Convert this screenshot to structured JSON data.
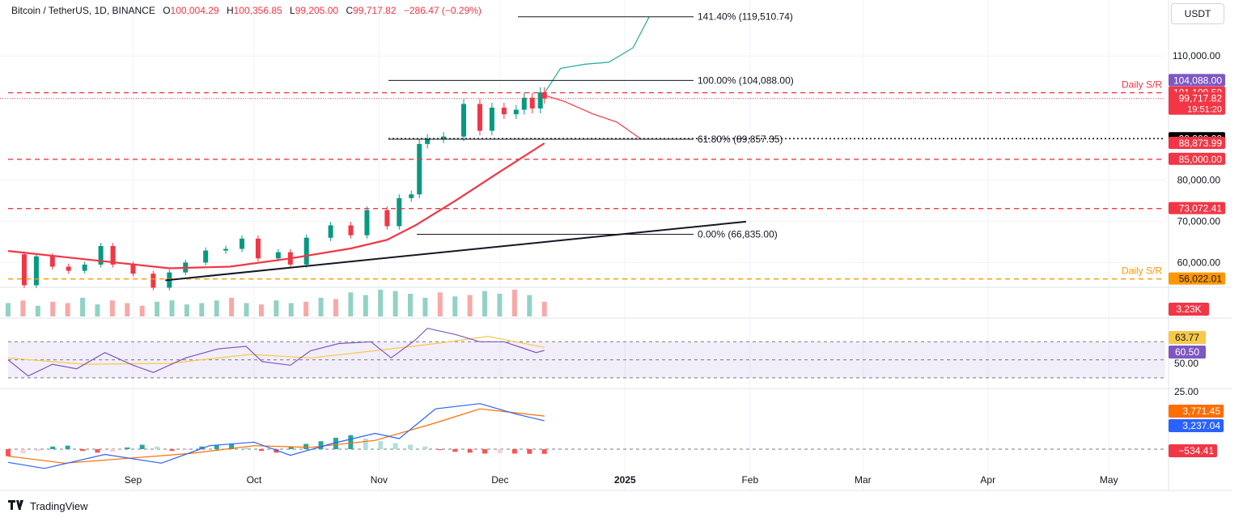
{
  "header": {
    "symbol": "Bitcoin / TetherUS, 1D, BINANCE",
    "o_label": "O",
    "o_value": "100,004.29",
    "h_label": "H",
    "h_value": "100,356.85",
    "l_label": "L",
    "l_value": "99,205.00",
    "c_label": "C",
    "c_value": "99,717.82",
    "change": "−286.47 (−0.29%)"
  },
  "currency": "USDT",
  "brand": "TradingView",
  "colors": {
    "up": "#089981",
    "down": "#f23645",
    "ema": "#f23645",
    "macd": "#2962ff",
    "signal": "#ff6d00",
    "rsi": "#7e57c2",
    "rsi_ma": "#f7c948",
    "support_orange": "#ff9800"
  },
  "chart_data": {
    "type": "candlestick",
    "title": "Bitcoin / TetherUS, 1D, BINANCE",
    "x_range": [
      "2024-08-01",
      "2025-05-15"
    ],
    "y_range": [
      54000,
      122000
    ],
    "x_ticks": [
      "Sep",
      "Oct",
      "Nov",
      "Dec",
      "2025",
      "Feb",
      "Mar",
      "Apr",
      "May"
    ],
    "x_tick_dates": [
      "2024-09-01",
      "2024-10-01",
      "2024-11-01",
      "2024-12-01",
      "2025-01-01",
      "2025-02-01",
      "2025-03-01",
      "2025-04-01",
      "2025-05-01"
    ],
    "y_ticks": [
      "110,000.00",
      "80,000.00",
      "70,000.00",
      "60,000.00"
    ],
    "y_tick_values": [
      110000,
      80000,
      70000,
      60000
    ],
    "close_series": [
      [
        "2024-08-01",
        62000
      ],
      [
        "2024-08-05",
        54500
      ],
      [
        "2024-08-08",
        61500
      ],
      [
        "2024-08-12",
        59000
      ],
      [
        "2024-08-16",
        58000
      ],
      [
        "2024-08-20",
        59500
      ],
      [
        "2024-08-24",
        64000
      ],
      [
        "2024-08-27",
        59500
      ],
      [
        "2024-09-01",
        57300
      ],
      [
        "2024-09-06",
        53900
      ],
      [
        "2024-09-10",
        57600
      ],
      [
        "2024-09-14",
        60000
      ],
      [
        "2024-09-19",
        62900
      ],
      [
        "2024-09-24",
        63300
      ],
      [
        "2024-09-28",
        65800
      ],
      [
        "2024-10-02",
        61000
      ],
      [
        "2024-10-07",
        62500
      ],
      [
        "2024-10-10",
        59500
      ],
      [
        "2024-10-14",
        66000
      ],
      [
        "2024-10-20",
        69000
      ],
      [
        "2024-10-25",
        66600
      ],
      [
        "2024-10-29",
        72700
      ],
      [
        "2024-11-03",
        68800
      ],
      [
        "2024-11-06",
        75600
      ],
      [
        "2024-11-09",
        76500
      ],
      [
        "2024-11-11",
        88700
      ],
      [
        "2024-11-13",
        90000
      ],
      [
        "2024-11-17",
        90500
      ],
      [
        "2024-11-22",
        98400
      ],
      [
        "2024-11-26",
        91900
      ],
      [
        "2024-11-29",
        97500
      ],
      [
        "2024-12-02",
        95900
      ],
      [
        "2024-12-05",
        97000
      ],
      [
        "2024-12-07",
        99900
      ],
      [
        "2024-12-09",
        97300
      ],
      [
        "2024-12-11",
        101200
      ],
      [
        "2024-12-12",
        99700
      ]
    ],
    "ohlc_last": {
      "date": "2024-12-12",
      "open": 100004.29,
      "high": 100356.85,
      "low": 99205.0,
      "close": 99717.82
    },
    "ema_series": [
      [
        "2024-08-01",
        62800
      ],
      [
        "2024-08-20",
        60800
      ],
      [
        "2024-09-10",
        58600
      ],
      [
        "2024-09-25",
        59000
      ],
      [
        "2024-10-10",
        61000
      ],
      [
        "2024-10-25",
        63400
      ],
      [
        "2024-11-03",
        65500
      ],
      [
        "2024-11-10",
        69000
      ],
      [
        "2024-11-20",
        75000
      ],
      [
        "2024-12-01",
        82000
      ],
      [
        "2024-12-12",
        88873.99
      ]
    ],
    "projection_up": [
      [
        "2024-12-12",
        101000
      ],
      [
        "2024-12-16",
        107000
      ],
      [
        "2024-12-22",
        108000
      ],
      [
        "2024-12-28",
        108500
      ],
      [
        "2025-01-03",
        112000
      ],
      [
        "2025-01-07",
        119510.74
      ]
    ],
    "projection_down": [
      [
        "2024-12-12",
        100500
      ],
      [
        "2024-12-17",
        99000
      ],
      [
        "2024-12-24",
        96000
      ],
      [
        "2024-12-30",
        94000
      ],
      [
        "2025-01-05",
        89857.35
      ]
    ],
    "support_lines": [
      {
        "label": "Daily S/R",
        "value": 101109.59,
        "style": "dashed",
        "color": "#f23645"
      },
      {
        "label": "",
        "value": 85000.0,
        "style": "dashed",
        "color": "#f23645"
      },
      {
        "label": "",
        "value": 73072.41,
        "style": "dashed",
        "color": "#f23645"
      },
      {
        "label": "Daily S/R",
        "value": 56022.01,
        "style": "dashed",
        "color": "#ff9800"
      },
      {
        "label": "",
        "value": 90000.0,
        "style": "dotted",
        "color": "#131722"
      }
    ],
    "fib_levels": [
      {
        "text": "141.40% (119,510.74)",
        "value": 119510.74
      },
      {
        "text": "100.00% (104,088.00)",
        "value": 104088.0
      },
      {
        "text": "61.80% (89,857.35)",
        "value": 89857.35
      },
      {
        "text": "0.00% (66,835.00)",
        "value": 66835.0
      }
    ],
    "trendline": {
      "start": [
        "2024-09-09",
        55700
      ],
      "end": [
        "2025-01-31",
        69900
      ]
    },
    "price_labels": [
      {
        "text": "104,088.00",
        "value": 104088.0,
        "bg": "#7e57c2",
        "fg": "#ffffff"
      },
      {
        "text": "101,109.59",
        "value": 101109.59,
        "bg": "#f23645",
        "fg": "#ffffff"
      },
      {
        "text": "99,717.82",
        "value": 99717.82,
        "bg": "#f23645",
        "fg": "#ffffff",
        "sub": "19:51:20"
      },
      {
        "text": "90,000.00",
        "value": 90000.0,
        "bg": "#000000",
        "fg": "#ffffff"
      },
      {
        "text": "88,873.99",
        "value": 88873.99,
        "bg": "#f23645",
        "fg": "#ffffff"
      },
      {
        "text": "85,000.00",
        "value": 85000.0,
        "bg": "#f23645",
        "fg": "#ffffff"
      },
      {
        "text": "73,072.41",
        "value": 73072.41,
        "bg": "#f23645",
        "fg": "#ffffff"
      },
      {
        "text": "56,022.01",
        "value": 56022.01,
        "bg": "#ff9800",
        "fg": "#131722"
      }
    ],
    "volume": {
      "last": "3.23K",
      "bars": [
        0.5,
        0.6,
        0.4,
        0.55,
        0.5,
        0.7,
        0.45,
        0.6,
        0.5,
        0.4,
        0.55,
        0.6,
        0.45,
        0.5,
        0.6,
        0.7,
        0.5,
        0.45,
        0.6,
        0.5,
        0.55,
        0.7,
        0.65,
        0.9,
        0.8,
        1.0,
        0.95,
        0.85,
        0.7,
        0.9,
        0.75,
        0.8,
        0.95,
        0.85,
        1.0,
        0.8,
        0.55
      ]
    },
    "rsi": {
      "value": "60.50",
      "ma_value": "63.77",
      "level": "50.00",
      "lower": "25.00",
      "series": [
        [
          "2024-08-01",
          50
        ],
        [
          "2024-08-06",
          32
        ],
        [
          "2024-08-12",
          45
        ],
        [
          "2024-08-18",
          40
        ],
        [
          "2024-08-25",
          58
        ],
        [
          "2024-09-01",
          44
        ],
        [
          "2024-09-06",
          36
        ],
        [
          "2024-09-14",
          52
        ],
        [
          "2024-09-22",
          62
        ],
        [
          "2024-09-29",
          65
        ],
        [
          "2024-10-03",
          48
        ],
        [
          "2024-10-10",
          44
        ],
        [
          "2024-10-15",
          60
        ],
        [
          "2024-10-22",
          68
        ],
        [
          "2024-10-30",
          70
        ],
        [
          "2024-11-04",
          52
        ],
        [
          "2024-11-10",
          72
        ],
        [
          "2024-11-13",
          85
        ],
        [
          "2024-11-20",
          78
        ],
        [
          "2024-11-26",
          70
        ],
        [
          "2024-12-02",
          70
        ],
        [
          "2024-12-06",
          64
        ],
        [
          "2024-12-10",
          58
        ],
        [
          "2024-12-12",
          60.5
        ]
      ],
      "ma_series": [
        [
          "2024-08-01",
          52
        ],
        [
          "2024-08-20",
          45
        ],
        [
          "2024-09-10",
          46
        ],
        [
          "2024-09-30",
          56
        ],
        [
          "2024-10-15",
          52
        ],
        [
          "2024-10-31",
          60
        ],
        [
          "2024-11-15",
          68
        ],
        [
          "2024-11-28",
          76
        ],
        [
          "2024-12-12",
          63.77
        ]
      ]
    },
    "macd": {
      "macd_value": "3,237.04",
      "signal_value": "3,771.45",
      "hist_value": "−534.41",
      "macd_series": [
        [
          "2024-08-01",
          -1500
        ],
        [
          "2024-08-10",
          -2200
        ],
        [
          "2024-08-25",
          -600
        ],
        [
          "2024-09-08",
          -1600
        ],
        [
          "2024-09-20",
          400
        ],
        [
          "2024-10-01",
          800
        ],
        [
          "2024-10-10",
          -700
        ],
        [
          "2024-10-20",
          600
        ],
        [
          "2024-10-31",
          1800
        ],
        [
          "2024-11-06",
          1200
        ],
        [
          "2024-11-15",
          4600
        ],
        [
          "2024-11-26",
          5200
        ],
        [
          "2024-12-05",
          4000
        ],
        [
          "2024-12-12",
          3237.04
        ]
      ],
      "signal_series": [
        [
          "2024-08-01",
          -800
        ],
        [
          "2024-08-15",
          -1600
        ],
        [
          "2024-09-01",
          -1000
        ],
        [
          "2024-09-15",
          -500
        ],
        [
          "2024-10-01",
          400
        ],
        [
          "2024-10-15",
          200
        ],
        [
          "2024-10-31",
          1000
        ],
        [
          "2024-11-15",
          3000
        ],
        [
          "2024-11-26",
          4600
        ],
        [
          "2024-12-12",
          3771.45
        ]
      ],
      "hist": [
        -800,
        -500,
        -200,
        300,
        400,
        -200,
        -400,
        -300,
        200,
        500,
        300,
        -200,
        -100,
        300,
        500,
        600,
        200,
        -200,
        -400,
        300,
        600,
        900,
        1300,
        1600,
        1200,
        900,
        700,
        500,
        300,
        -100,
        -300,
        -400,
        -500,
        -450,
        -500,
        -530,
        -534.41
      ]
    }
  }
}
